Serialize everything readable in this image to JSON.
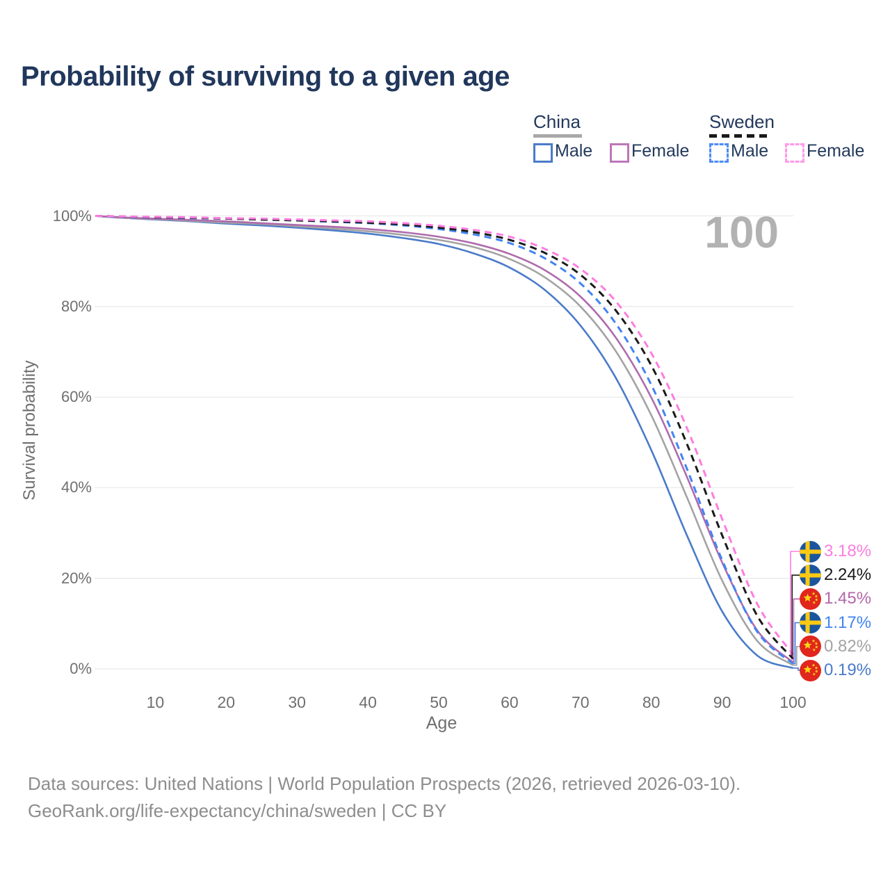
{
  "title": "Probability of surviving to a given age",
  "watermark": "100",
  "legend": {
    "groups": [
      {
        "label": "China",
        "line_style": "solid",
        "underline_color": "#a9a9a9",
        "items": [
          {
            "label": "Male",
            "color": "#4a7bc9",
            "dashed": false
          },
          {
            "label": "Female",
            "color": "#bd77b8",
            "dashed": false
          }
        ]
      },
      {
        "label": "Sweden",
        "line_style": "dashed",
        "underline_color": "#1a1a1a",
        "items": [
          {
            "label": "Male",
            "color": "#4d8bf8",
            "dashed": true
          },
          {
            "label": "Female",
            "color": "#ff9ae8",
            "dashed": true
          }
        ]
      }
    ]
  },
  "axes": {
    "y_title": "Survival probability",
    "x_title": "Age",
    "y_ticks": [
      {
        "label": "0%",
        "value": 0
      },
      {
        "label": "20%",
        "value": 20
      },
      {
        "label": "40%",
        "value": 40
      },
      {
        "label": "60%",
        "value": 60
      },
      {
        "label": "80%",
        "value": 80
      },
      {
        "label": "100%",
        "value": 100
      }
    ],
    "x_ticks": [
      {
        "label": "10",
        "value": 10
      },
      {
        "label": "20",
        "value": 20
      },
      {
        "label": "30",
        "value": 30
      },
      {
        "label": "40",
        "value": 40
      },
      {
        "label": "50",
        "value": 50
      },
      {
        "label": "60",
        "value": 60
      },
      {
        "label": "70",
        "value": 70
      },
      {
        "label": "80",
        "value": 80
      },
      {
        "label": "90",
        "value": 90
      },
      {
        "label": "100",
        "value": 100
      }
    ]
  },
  "chart_data": {
    "type": "line",
    "title": "Probability of surviving to a given age",
    "xlabel": "Age",
    "ylabel": "Survival probability",
    "xlim": [
      0,
      100
    ],
    "ylim": [
      0,
      100
    ],
    "grid": "horizontal",
    "x": [
      0,
      5,
      10,
      15,
      20,
      25,
      30,
      35,
      40,
      45,
      50,
      55,
      60,
      65,
      70,
      75,
      80,
      85,
      90,
      95,
      100
    ],
    "series": [
      {
        "name": "China Male",
        "country": "china",
        "color": "#4a7bc9",
        "dashed": false,
        "values": [
          100,
          99.6,
          99.2,
          98.8,
          98.3,
          97.9,
          97.4,
          96.8,
          96.1,
          95.1,
          93.8,
          91.7,
          88.6,
          83.6,
          75.8,
          64.2,
          48.3,
          29.6,
          12.7,
          2.9,
          0.19
        ]
      },
      {
        "name": "China Both Sexes",
        "country": "china",
        "color": "#a3a3a3",
        "dashed": false,
        "values": [
          100,
          99.6,
          99.3,
          98.9,
          98.5,
          98.2,
          97.7,
          97.2,
          96.6,
          95.8,
          94.7,
          93.1,
          90.5,
          86.4,
          80.0,
          70.1,
          56.0,
          38.0,
          19.5,
          6.1,
          0.82
        ]
      },
      {
        "name": "China Female",
        "country": "china",
        "color": "#af6bad",
        "dashed": false,
        "values": [
          100,
          99.7,
          99.4,
          99.1,
          98.8,
          98.4,
          98.0,
          97.6,
          97.1,
          96.4,
          95.4,
          93.9,
          91.6,
          88.0,
          82.2,
          73.1,
          59.9,
          42.5,
          23.5,
          8.4,
          1.45
        ]
      },
      {
        "name": "Sweden Male",
        "country": "sweden",
        "color": "#4184f3",
        "dashed": true,
        "values": [
          100,
          99.8,
          99.7,
          99.5,
          99.4,
          99.2,
          99.0,
          98.7,
          98.4,
          97.9,
          97.1,
          95.9,
          94.0,
          90.6,
          85.1,
          76.2,
          62.7,
          44.3,
          24.0,
          8.1,
          1.17
        ]
      },
      {
        "name": "Sweden Both Sexes",
        "country": "sweden",
        "color": "#1a1a1a",
        "dashed": true,
        "values": [
          100,
          99.9,
          99.7,
          99.6,
          99.4,
          99.2,
          99.0,
          98.8,
          98.5,
          98.1,
          97.4,
          96.4,
          94.7,
          91.8,
          87.0,
          79.1,
          67.0,
          49.8,
          29.5,
          11.6,
          2.24
        ]
      },
      {
        "name": "Sweden Female",
        "country": "sweden",
        "color": "#fd7de0",
        "dashed": true,
        "values": [
          100,
          99.9,
          99.8,
          99.7,
          99.5,
          99.4,
          99.2,
          99.0,
          98.8,
          98.4,
          97.8,
          96.9,
          95.4,
          92.7,
          88.3,
          81.1,
          69.7,
          53.3,
          33.1,
          14.2,
          3.18
        ]
      }
    ]
  },
  "end_labels": [
    {
      "series": "Sweden Female",
      "flag": "sweden",
      "text": "3.18%",
      "value": 3.18,
      "color": "#fd7de0"
    },
    {
      "series": "Sweden Both Sexes",
      "flag": "sweden",
      "text": "2.24%",
      "value": 2.24,
      "color": "#1a1a1a"
    },
    {
      "series": "China Female",
      "flag": "china",
      "text": "1.45%",
      "value": 1.45,
      "color": "#b267a9"
    },
    {
      "series": "Sweden Male",
      "flag": "sweden",
      "text": "1.17%",
      "value": 1.17,
      "color": "#4184f3"
    },
    {
      "series": "China Both Sexes",
      "flag": "china",
      "text": "0.82%",
      "value": 0.82,
      "color": "#a3a3a3"
    },
    {
      "series": "China Male",
      "flag": "china",
      "text": "0.19%",
      "value": 0.19,
      "color": "#4a7bc9"
    }
  ],
  "footer": {
    "line1": "Data sources: United Nations | World Population Prospects (2026, retrieved 2026-03-10).",
    "line2": "GeoRank.org/life-expectancy/china/sweden | CC BY"
  },
  "colors": {
    "title": "#21375c",
    "axis_text": "#6f6f6f",
    "gridline": "#e9e9e9",
    "watermark": "#b2b2b2",
    "footer": "#8d8d8d"
  }
}
